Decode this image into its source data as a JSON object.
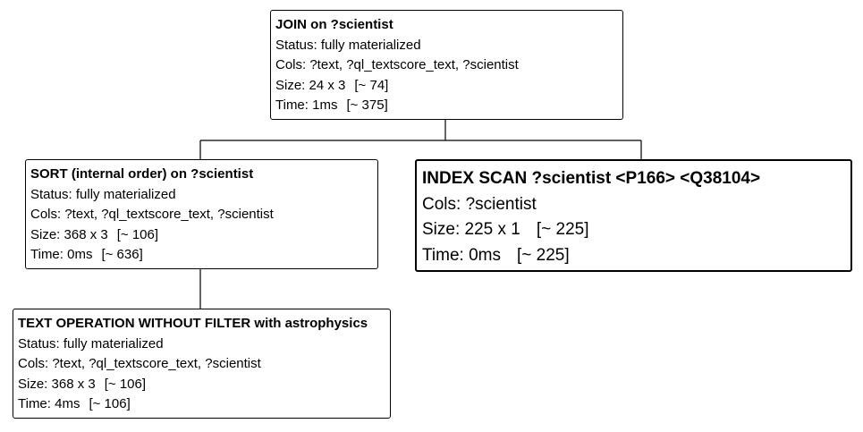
{
  "nodes": {
    "join": {
      "title": "JOIN on ?scientist",
      "status": "Status: fully materialized",
      "cols": "Cols: ?text, ?ql_textscore_text, ?scientist",
      "size": "Size: 24 x 3",
      "size_estimate": "[~ 74]",
      "time": "Time: 1ms",
      "time_estimate": "[~ 375]"
    },
    "sort": {
      "title": "SORT (internal order) on ?scientist",
      "status": "Status: fully materialized",
      "cols": "Cols: ?text, ?ql_textscore_text, ?scientist",
      "size": "Size: 368 x 3",
      "size_estimate": "[~ 106]",
      "time": "Time: 0ms",
      "time_estimate": "[~ 636]"
    },
    "index_scan": {
      "title": "INDEX SCAN ?scientist <P166> <Q38104>",
      "cols": "Cols: ?scientist",
      "size": "Size: 225 x 1",
      "size_estimate": "[~ 225]",
      "time": "Time: 0ms",
      "time_estimate": "[~ 225]"
    },
    "text_op": {
      "title": "TEXT OPERATION WITHOUT FILTER with astrophysics",
      "status": "Status: fully materialized",
      "cols": "Cols: ?text, ?ql_textscore_text, ?scientist",
      "size": "Size: 368 x 3",
      "size_estimate": "[~ 106]",
      "time": "Time: 4ms",
      "time_estimate": "[~ 106]"
    }
  }
}
